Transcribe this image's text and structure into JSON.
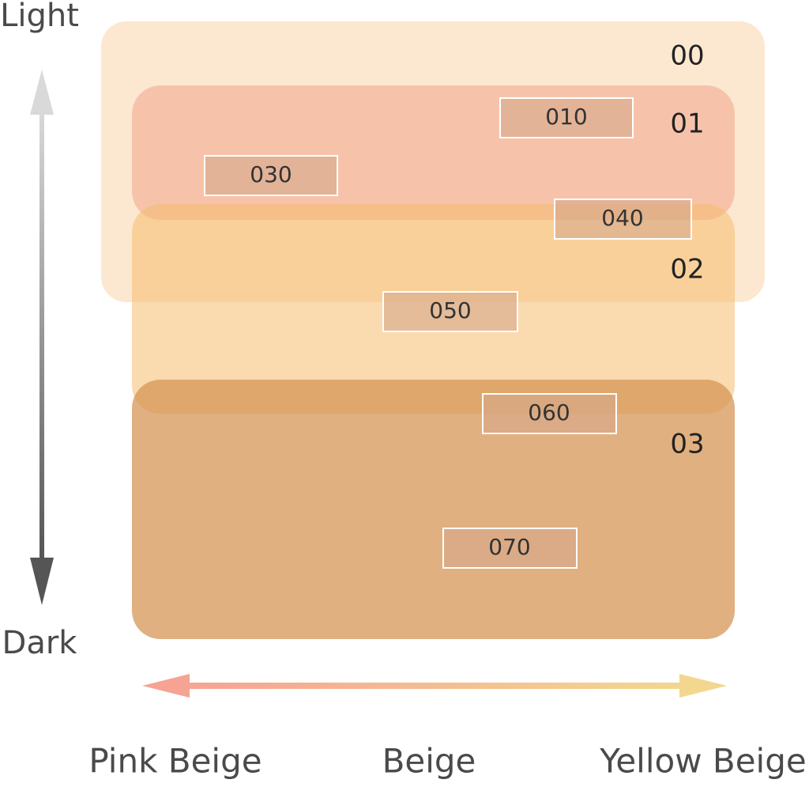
{
  "axes": {
    "vertical": {
      "top": "Light",
      "bottom": "Dark"
    },
    "horizontal": {
      "left": "Pink Beige",
      "middle": "Beige",
      "right": "Yellow Beige"
    }
  },
  "groups": [
    {
      "label": "00"
    },
    {
      "label": "01"
    },
    {
      "label": "02"
    },
    {
      "label": "03"
    }
  ],
  "shades": [
    {
      "label": "010"
    },
    {
      "label": "030"
    },
    {
      "label": "040"
    },
    {
      "label": "050"
    },
    {
      "label": "060"
    },
    {
      "label": "070"
    }
  ]
}
